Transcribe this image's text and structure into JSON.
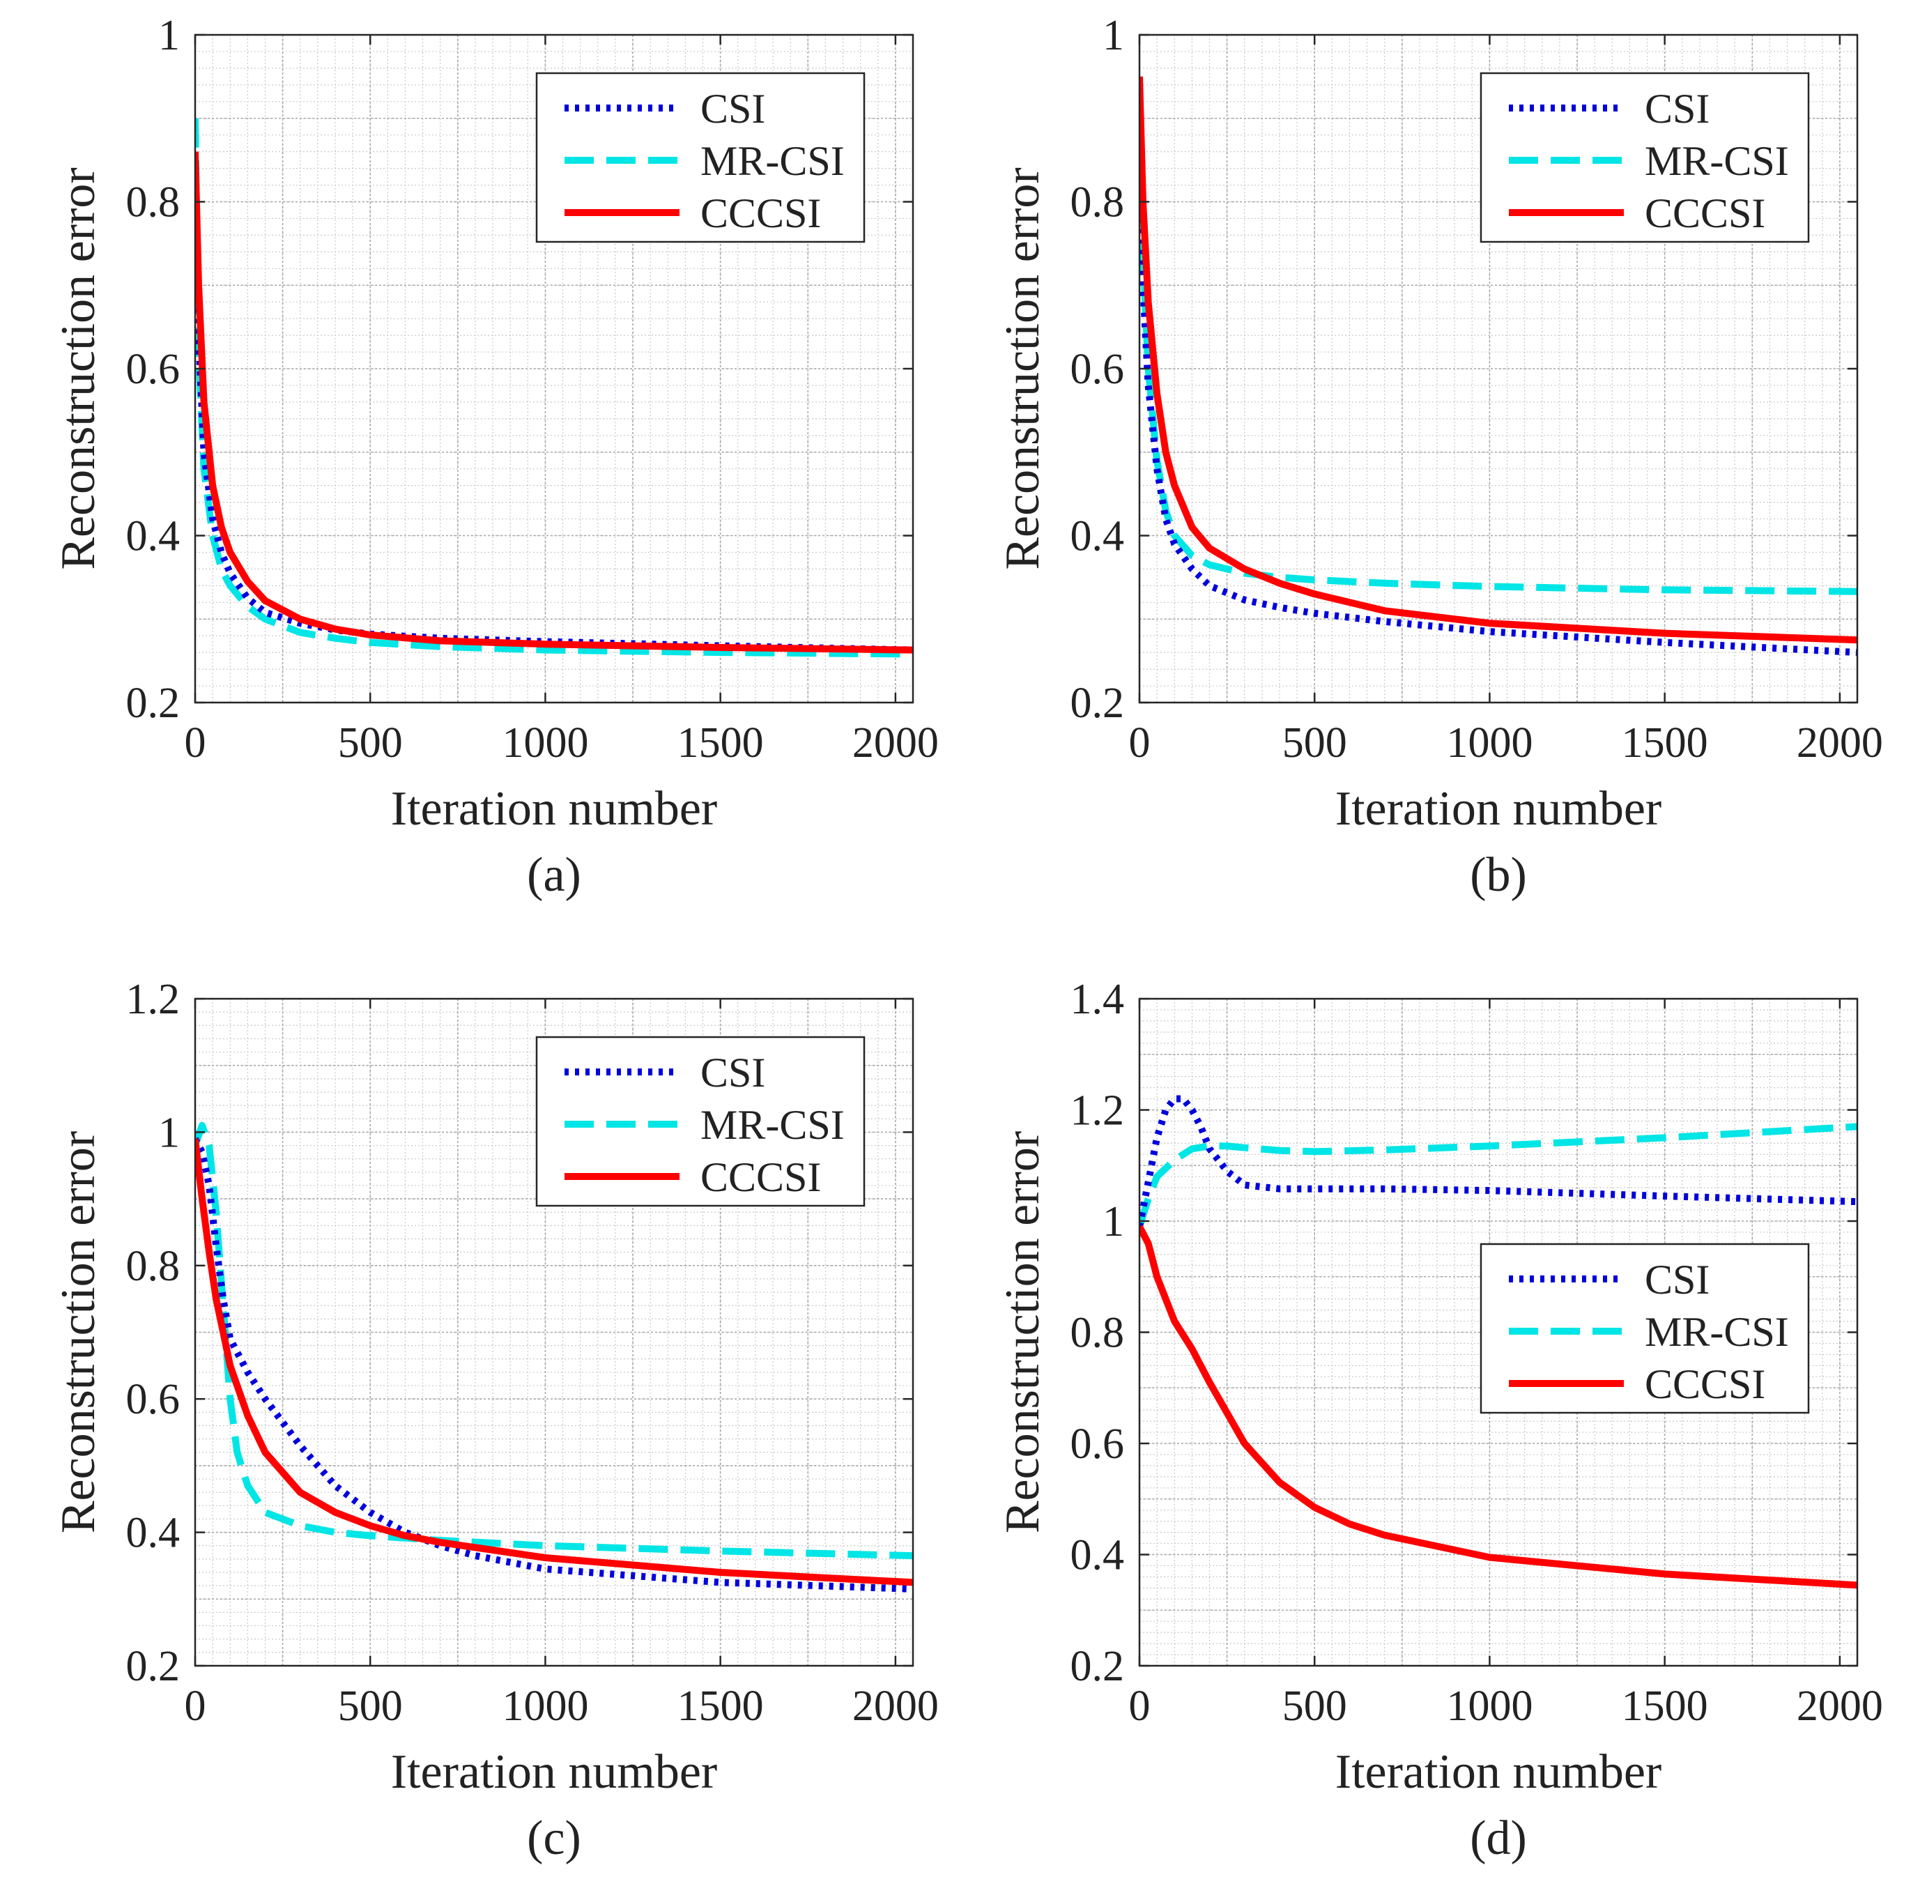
{
  "figure": {
    "description_labels": [
      "(a)",
      "(b)",
      "(c)",
      "(d)"
    ]
  },
  "chart_data": [
    {
      "type": "line",
      "panel_label": "(a)",
      "xlabel": "Iteration number",
      "ylabel": "Reconstruction error",
      "xlim": [
        0,
        2050
      ],
      "ylim": [
        0.2,
        1
      ],
      "xticks": [
        0,
        500,
        1000,
        1500,
        2000
      ],
      "yticks": [
        0.2,
        0.4,
        0.6,
        0.8,
        1
      ],
      "ytick_labels": [
        "0.2",
        "0.4",
        "0.6",
        "0.8",
        "1"
      ],
      "grid": true,
      "legend_position": "top-right",
      "series": [
        {
          "name": "CSI",
          "color": "#0000dd",
          "style": "dotted",
          "x": [
            0,
            10,
            25,
            50,
            75,
            100,
            150,
            200,
            300,
            400,
            500,
            700,
            1000,
            1500,
            2050
          ],
          "y": [
            0.86,
            0.64,
            0.5,
            0.42,
            0.38,
            0.355,
            0.325,
            0.308,
            0.295,
            0.287,
            0.282,
            0.277,
            0.273,
            0.268,
            0.263
          ]
        },
        {
          "name": "MR-CSI",
          "color": "#00e5e5",
          "style": "dashed",
          "x": [
            0,
            10,
            25,
            50,
            75,
            100,
            150,
            200,
            300,
            400,
            500,
            700,
            1000,
            1500,
            2050
          ],
          "y": [
            0.9,
            0.62,
            0.48,
            0.4,
            0.36,
            0.34,
            0.315,
            0.3,
            0.284,
            0.277,
            0.272,
            0.267,
            0.263,
            0.26,
            0.258
          ]
        },
        {
          "name": "CCCSI",
          "color": "#ff0000",
          "style": "solid",
          "x": [
            0,
            10,
            25,
            50,
            75,
            100,
            150,
            200,
            300,
            400,
            500,
            700,
            1000,
            1500,
            2050
          ],
          "y": [
            0.86,
            0.7,
            0.56,
            0.46,
            0.41,
            0.38,
            0.345,
            0.322,
            0.3,
            0.288,
            0.281,
            0.274,
            0.27,
            0.266,
            0.263
          ]
        }
      ]
    },
    {
      "type": "line",
      "panel_label": "(b)",
      "xlabel": "Iteration number",
      "ylabel": "Reconstruction error",
      "xlim": [
        0,
        2050
      ],
      "ylim": [
        0.2,
        1
      ],
      "xticks": [
        0,
        500,
        1000,
        1500,
        2000
      ],
      "yticks": [
        0.2,
        0.4,
        0.6,
        0.8,
        1
      ],
      "ytick_labels": [
        "0.2",
        "0.4",
        "0.6",
        "0.8",
        "1"
      ],
      "grid": true,
      "legend_position": "top-right",
      "series": [
        {
          "name": "CSI",
          "color": "#0000dd",
          "style": "dotted",
          "x": [
            0,
            10,
            25,
            50,
            75,
            100,
            150,
            200,
            300,
            400,
            500,
            700,
            1000,
            1500,
            2050
          ],
          "y": [
            0.88,
            0.7,
            0.58,
            0.48,
            0.42,
            0.39,
            0.36,
            0.34,
            0.323,
            0.314,
            0.307,
            0.297,
            0.285,
            0.272,
            0.26
          ]
        },
        {
          "name": "MR-CSI",
          "color": "#00e5e5",
          "style": "dashed",
          "x": [
            0,
            10,
            25,
            50,
            75,
            100,
            150,
            200,
            300,
            400,
            500,
            700,
            1000,
            1500,
            2050
          ],
          "y": [
            0.95,
            0.74,
            0.6,
            0.49,
            0.43,
            0.4,
            0.376,
            0.365,
            0.355,
            0.35,
            0.347,
            0.343,
            0.339,
            0.335,
            0.333
          ]
        },
        {
          "name": "CCCSI",
          "color": "#ff0000",
          "style": "solid",
          "x": [
            0,
            10,
            25,
            50,
            75,
            100,
            150,
            200,
            300,
            400,
            500,
            700,
            1000,
            1500,
            2050
          ],
          "y": [
            0.95,
            0.8,
            0.68,
            0.57,
            0.5,
            0.46,
            0.41,
            0.385,
            0.36,
            0.343,
            0.33,
            0.31,
            0.295,
            0.283,
            0.275
          ]
        }
      ]
    },
    {
      "type": "line",
      "panel_label": "(c)",
      "xlabel": "Iteration number",
      "ylabel": "Reconstruction error",
      "xlim": [
        0,
        2050
      ],
      "ylim": [
        0.2,
        1.2
      ],
      "xticks": [
        0,
        500,
        1000,
        1500,
        2000
      ],
      "yticks": [
        0.2,
        0.4,
        0.6,
        0.8,
        1,
        1.2
      ],
      "ytick_labels": [
        "0.2",
        "0.4",
        "0.6",
        "0.8",
        "1",
        "1.2"
      ],
      "grid": true,
      "legend_position": "top-right",
      "series": [
        {
          "name": "CSI",
          "color": "#0000dd",
          "style": "dotted",
          "x": [
            0,
            20,
            40,
            60,
            80,
            100,
            150,
            200,
            300,
            400,
            500,
            600,
            700,
            800,
            1000,
            1500,
            2050
          ],
          "y": [
            0.99,
            0.97,
            0.92,
            0.83,
            0.75,
            0.69,
            0.64,
            0.6,
            0.53,
            0.47,
            0.43,
            0.4,
            0.38,
            0.365,
            0.345,
            0.325,
            0.315
          ]
        },
        {
          "name": "MR-CSI",
          "color": "#00e5e5",
          "style": "dashed",
          "x": [
            0,
            20,
            40,
            60,
            80,
            100,
            120,
            150,
            200,
            300,
            400,
            500,
            700,
            1000,
            1500,
            2050
          ],
          "y": [
            0.98,
            1.01,
            0.98,
            0.88,
            0.74,
            0.6,
            0.52,
            0.47,
            0.43,
            0.41,
            0.4,
            0.395,
            0.388,
            0.38,
            0.372,
            0.365
          ]
        },
        {
          "name": "CCCSI",
          "color": "#ff0000",
          "style": "solid",
          "x": [
            0,
            20,
            40,
            60,
            80,
            100,
            150,
            200,
            300,
            400,
            500,
            600,
            700,
            1000,
            1500,
            2050
          ],
          "y": [
            0.99,
            0.9,
            0.82,
            0.75,
            0.7,
            0.65,
            0.575,
            0.52,
            0.46,
            0.43,
            0.41,
            0.395,
            0.385,
            0.362,
            0.34,
            0.325
          ]
        }
      ]
    },
    {
      "type": "line",
      "panel_label": "(d)",
      "xlabel": "Iteration number",
      "ylabel": "Reconstruction error",
      "xlim": [
        0,
        2050
      ],
      "ylim": [
        0.2,
        1.4
      ],
      "xticks": [
        0,
        500,
        1000,
        1500,
        2000
      ],
      "yticks": [
        0.2,
        0.4,
        0.6,
        0.8,
        1,
        1.2,
        1.4
      ],
      "ytick_labels": [
        "0.2",
        "0.4",
        "0.6",
        "0.8",
        "1",
        "1.2",
        "1.4"
      ],
      "grid": true,
      "legend_position": "right",
      "series": [
        {
          "name": "CSI",
          "color": "#0000dd",
          "style": "dotted",
          "x": [
            0,
            25,
            50,
            75,
            100,
            125,
            150,
            175,
            200,
            250,
            300,
            400,
            500,
            700,
            1000,
            1500,
            2050
          ],
          "y": [
            0.99,
            1.07,
            1.15,
            1.2,
            1.22,
            1.22,
            1.2,
            1.17,
            1.13,
            1.09,
            1.065,
            1.058,
            1.058,
            1.058,
            1.055,
            1.045,
            1.035
          ]
        },
        {
          "name": "MR-CSI",
          "color": "#00e5e5",
          "style": "dashed",
          "x": [
            0,
            25,
            50,
            100,
            150,
            200,
            250,
            300,
            400,
            500,
            700,
            1000,
            1500,
            2050
          ],
          "y": [
            0.99,
            1.04,
            1.08,
            1.11,
            1.13,
            1.135,
            1.135,
            1.132,
            1.127,
            1.125,
            1.128,
            1.135,
            1.15,
            1.17
          ]
        },
        {
          "name": "CCCSI",
          "color": "#ff0000",
          "style": "solid",
          "x": [
            0,
            25,
            50,
            100,
            150,
            200,
            300,
            400,
            500,
            600,
            700,
            1000,
            1500,
            2050
          ],
          "y": [
            0.99,
            0.96,
            0.9,
            0.82,
            0.77,
            0.71,
            0.6,
            0.53,
            0.485,
            0.455,
            0.435,
            0.395,
            0.365,
            0.345
          ]
        }
      ]
    }
  ]
}
